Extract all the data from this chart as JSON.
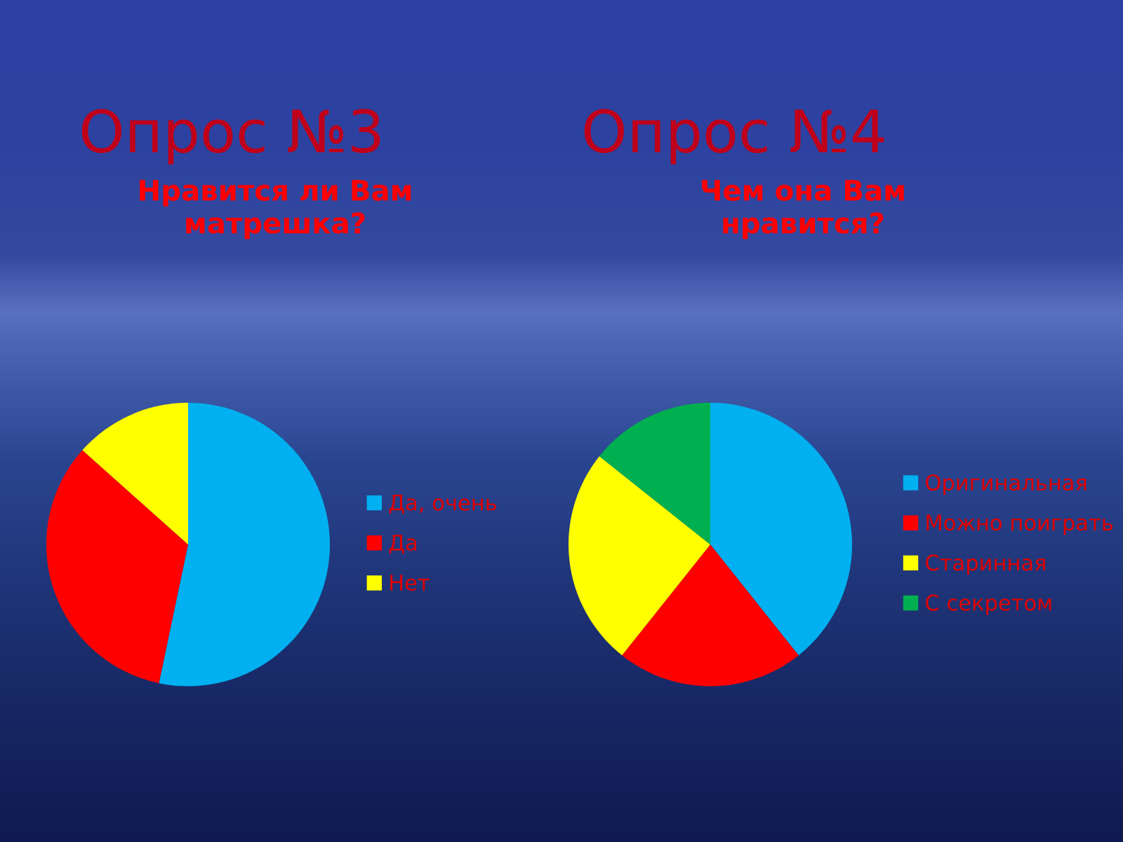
{
  "chart_data": [
    {
      "type": "pie",
      "title": "Опрос №3",
      "subtitle": "Нравится ли Вам\nматрешка?",
      "categories": [
        "Да, очень",
        "Да",
        "Нет"
      ],
      "values": [
        53.3,
        33.3,
        13.4
      ],
      "colors": [
        "#00b0f0",
        "#ff0000",
        "#ffff00"
      ],
      "legend": "right"
    },
    {
      "type": "pie",
      "title": "Опрос №4",
      "subtitle": "Чем она Вам\nнравится?",
      "categories": [
        "Оригинальная",
        "Можно поиграть",
        "Старинная",
        "С секретом"
      ],
      "values": [
        39.3,
        21.4,
        25,
        14.3
      ],
      "colors": [
        "#00b0f0",
        "#ff0000",
        "#ffff00",
        "#00b050"
      ],
      "legend": "right"
    }
  ]
}
